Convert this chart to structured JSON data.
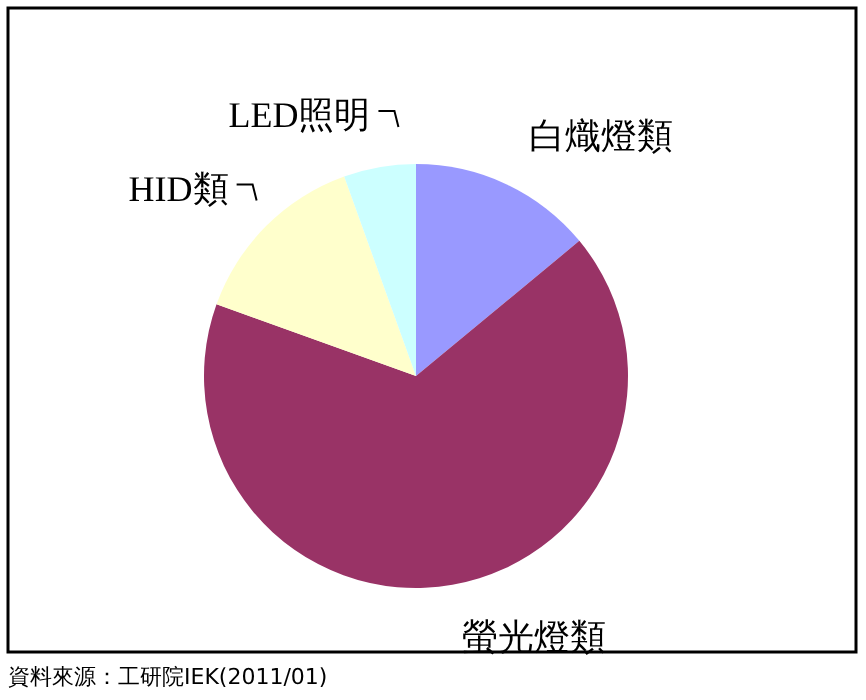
{
  "chart_data": {
    "type": "pie",
    "categories": [
      "白熾燈類",
      "螢光燈類",
      "HID類",
      "LED照明"
    ],
    "values": [
      14,
      66.5,
      14,
      5.5
    ],
    "colors": [
      "#9999ff",
      "#993366",
      "#ffffcc",
      "#ccffff"
    ],
    "annotations": [
      "資料來源：工研院IEK(2011/01)"
    ]
  }
}
